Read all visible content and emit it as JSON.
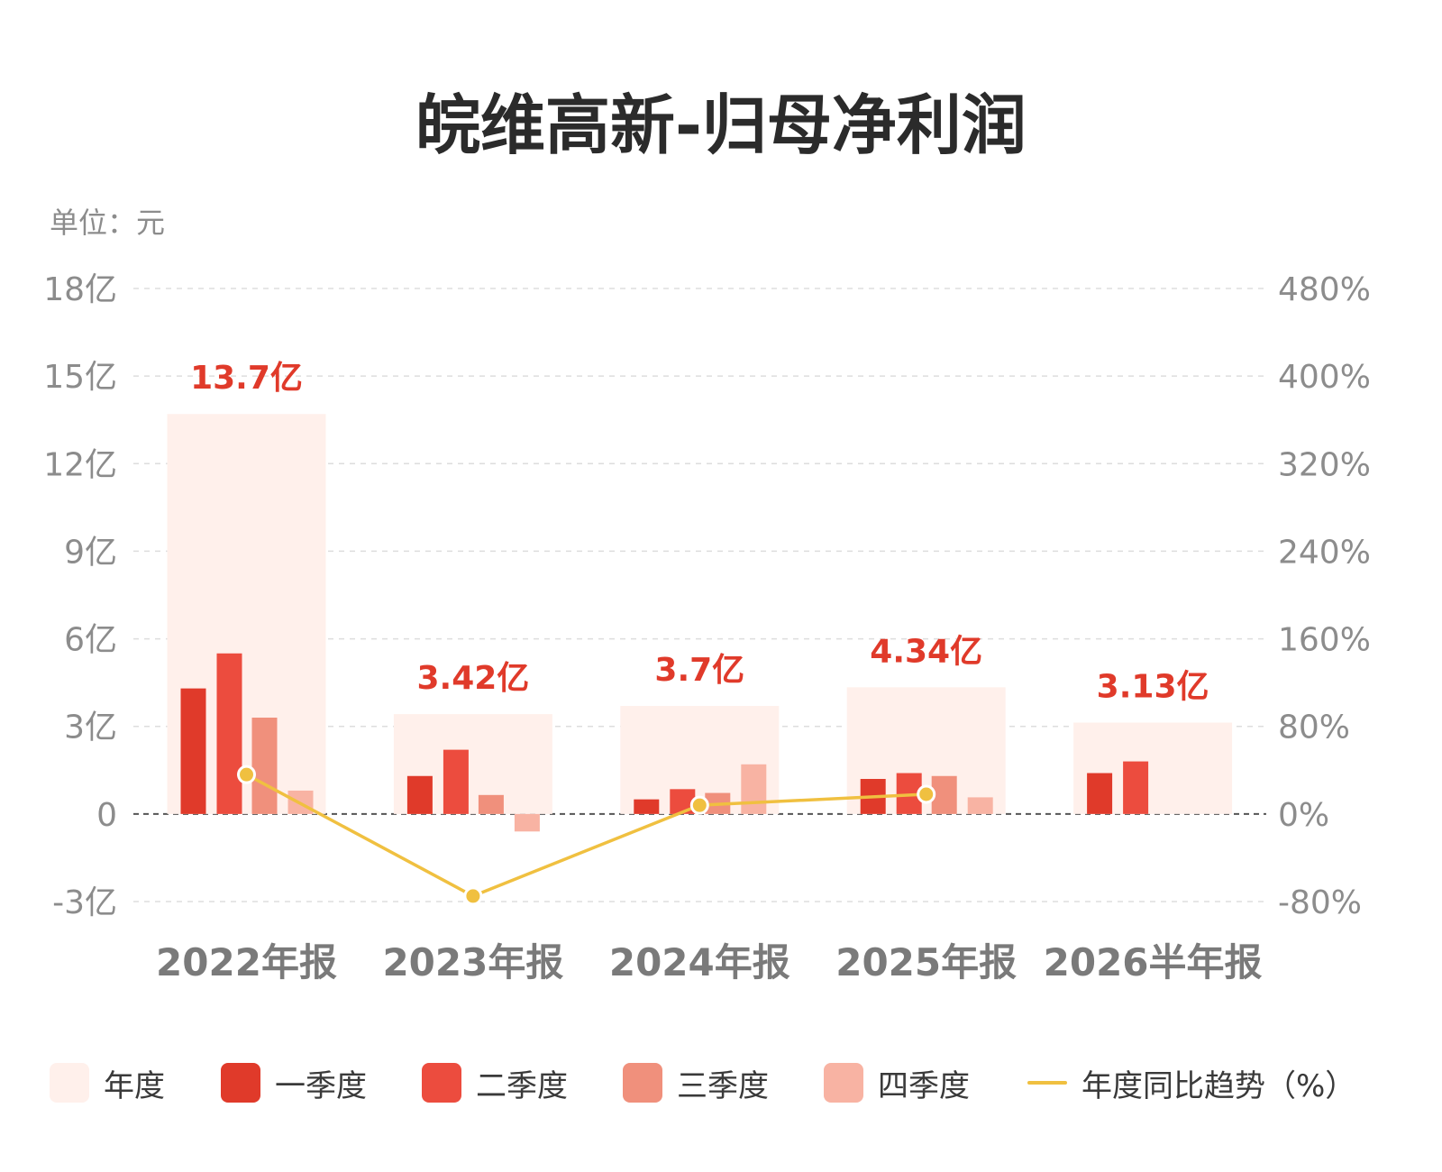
{
  "title": "皖维高新-归母净利润",
  "unit_label": "单位：元",
  "colors": {
    "annual": "#fff0eb",
    "q1": "#e03a2a",
    "q2": "#ec4c3e",
    "q3": "#f0907c",
    "q4": "#f8b3a3",
    "trend": "#f0c040",
    "label": "#e03a2a",
    "axis_text": "#8c8c8c",
    "category_text": "#7a7a7a"
  },
  "chart_data": {
    "type": "bar",
    "categories": [
      "2022年报",
      "2023年报",
      "2024年报",
      "2025年报",
      "2026半年报"
    ],
    "annual_labels": [
      "13.7亿",
      "3.42亿",
      "3.7亿",
      "4.34亿",
      "3.13亿"
    ],
    "series": [
      {
        "name": "年度",
        "values": [
          13.7,
          3.42,
          3.7,
          4.34,
          3.13
        ]
      },
      {
        "name": "一季度",
        "values": [
          4.3,
          1.3,
          0.5,
          1.2,
          1.4
        ]
      },
      {
        "name": "二季度",
        "values": [
          5.5,
          2.2,
          0.85,
          1.4,
          1.8
        ]
      },
      {
        "name": "三季度",
        "values": [
          3.3,
          0.65,
          0.72,
          1.3,
          null
        ]
      },
      {
        "name": "四季度",
        "values": [
          0.8,
          -0.6,
          1.7,
          0.57,
          null
        ]
      },
      {
        "name": "年度同比趋势（%）",
        "values": [
          36,
          -75,
          8,
          18,
          null
        ]
      }
    ],
    "y_left": {
      "min": -3,
      "max": 18,
      "ticks": [
        18,
        15,
        12,
        9,
        6,
        3,
        0,
        -3
      ],
      "tick_labels": [
        "18亿",
        "15亿",
        "12亿",
        "9亿",
        "6亿",
        "3亿",
        "0",
        "-3亿"
      ]
    },
    "y_right": {
      "min": -80,
      "max": 480,
      "ticks": [
        480,
        400,
        320,
        240,
        160,
        80,
        0,
        -80
      ],
      "tick_labels": [
        "480%",
        "400%",
        "320%",
        "240%",
        "160%",
        "80%",
        "0%",
        "-80%"
      ]
    },
    "grid": true,
    "legend_position": "bottom"
  },
  "legend": [
    {
      "label": "年度",
      "key": "annual"
    },
    {
      "label": "一季度",
      "key": "q1"
    },
    {
      "label": "二季度",
      "key": "q2"
    },
    {
      "label": "三季度",
      "key": "q3"
    },
    {
      "label": "四季度",
      "key": "q4"
    },
    {
      "label": "年度同比趋势（%）",
      "key": "trend"
    }
  ]
}
